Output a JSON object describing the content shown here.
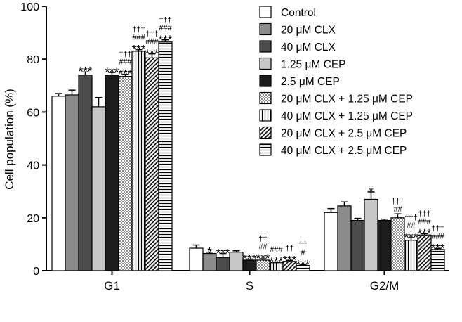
{
  "chart_data": {
    "type": "bar",
    "ylabel": "Cell population (%)",
    "xlabel": "",
    "ylim": [
      0,
      100
    ],
    "yticks": [
      0,
      20,
      40,
      60,
      80,
      100
    ],
    "legend_position": "top-right",
    "categories": [
      "G1",
      "S",
      "G2/M"
    ],
    "series": [
      {
        "name": "Control",
        "fill": "white",
        "values": [
          66,
          8.5,
          22
        ],
        "errors": [
          1,
          1.2,
          1.5
        ],
        "annotations": [
          [],
          [],
          []
        ]
      },
      {
        "name": "20 μM CLX",
        "fill": "grey",
        "values": [
          66.5,
          6.5,
          24.5
        ],
        "errors": [
          1.8,
          0.5,
          1.5
        ],
        "annotations": [
          [],
          [
            "*"
          ],
          []
        ]
      },
      {
        "name": "40 μM CLX",
        "fill": "darkgrey",
        "values": [
          74,
          5,
          19
        ],
        "errors": [
          1.2,
          1.5,
          0.8
        ],
        "annotations": [
          [
            "***"
          ],
          [
            "***"
          ],
          []
        ]
      },
      {
        "name": "1.25 μM CEP",
        "fill": "lightgrey",
        "values": [
          62,
          7,
          27
        ],
        "errors": [
          3.5,
          0.5,
          2.8
        ],
        "annotations": [
          [],
          [],
          [
            "*"
          ]
        ]
      },
      {
        "name": "2.5 μM CEP",
        "fill": "black",
        "values": [
          74,
          4,
          19
        ],
        "errors": [
          1,
          0.4,
          0.5
        ],
        "annotations": [
          [
            "***"
          ],
          [
            "***"
          ],
          []
        ]
      },
      {
        "name": "20 μM CLX + 1.25 μM CEP",
        "fill": "dots",
        "values": [
          73.5,
          4,
          20
        ],
        "errors": [
          0.8,
          0.5,
          1.5
        ],
        "annotations": [
          [
            "†††",
            "###",
            "***"
          ],
          [
            "††",
            "##",
            "***"
          ],
          [
            "†††",
            "##"
          ]
        ]
      },
      {
        "name": "40 μM CLX + 1.25 μM CEP",
        "fill": "vlines",
        "values": [
          83,
          3,
          11.5
        ],
        "errors": [
          0.6,
          0.3,
          1
        ],
        "annotations": [
          [
            "†††",
            "###",
            "***"
          ],
          [
            "###",
            "***"
          ],
          [
            "†††",
            "##",
            "***"
          ]
        ]
      },
      {
        "name": "20 μM CLX + 2.5 μM CEP",
        "fill": "diag",
        "values": [
          80.5,
          3.5,
          13.5
        ],
        "errors": [
          1.5,
          0.4,
          0.5
        ],
        "annotations": [
          [
            "†††",
            "###",
            "***"
          ],
          [
            "††",
            "***"
          ],
          [
            "†††",
            "###",
            "***"
          ]
        ]
      },
      {
        "name": "40 μM CLX + 2.5 μM CEP",
        "fill": "hlines",
        "values": [
          86.5,
          2,
          8
        ],
        "errors": [
          0.8,
          0.3,
          0.4
        ],
        "annotations": [
          [
            "†††",
            "###",
            "***"
          ],
          [
            "††",
            "#",
            "***"
          ],
          [
            "†††",
            "###",
            "***"
          ]
        ]
      }
    ]
  }
}
